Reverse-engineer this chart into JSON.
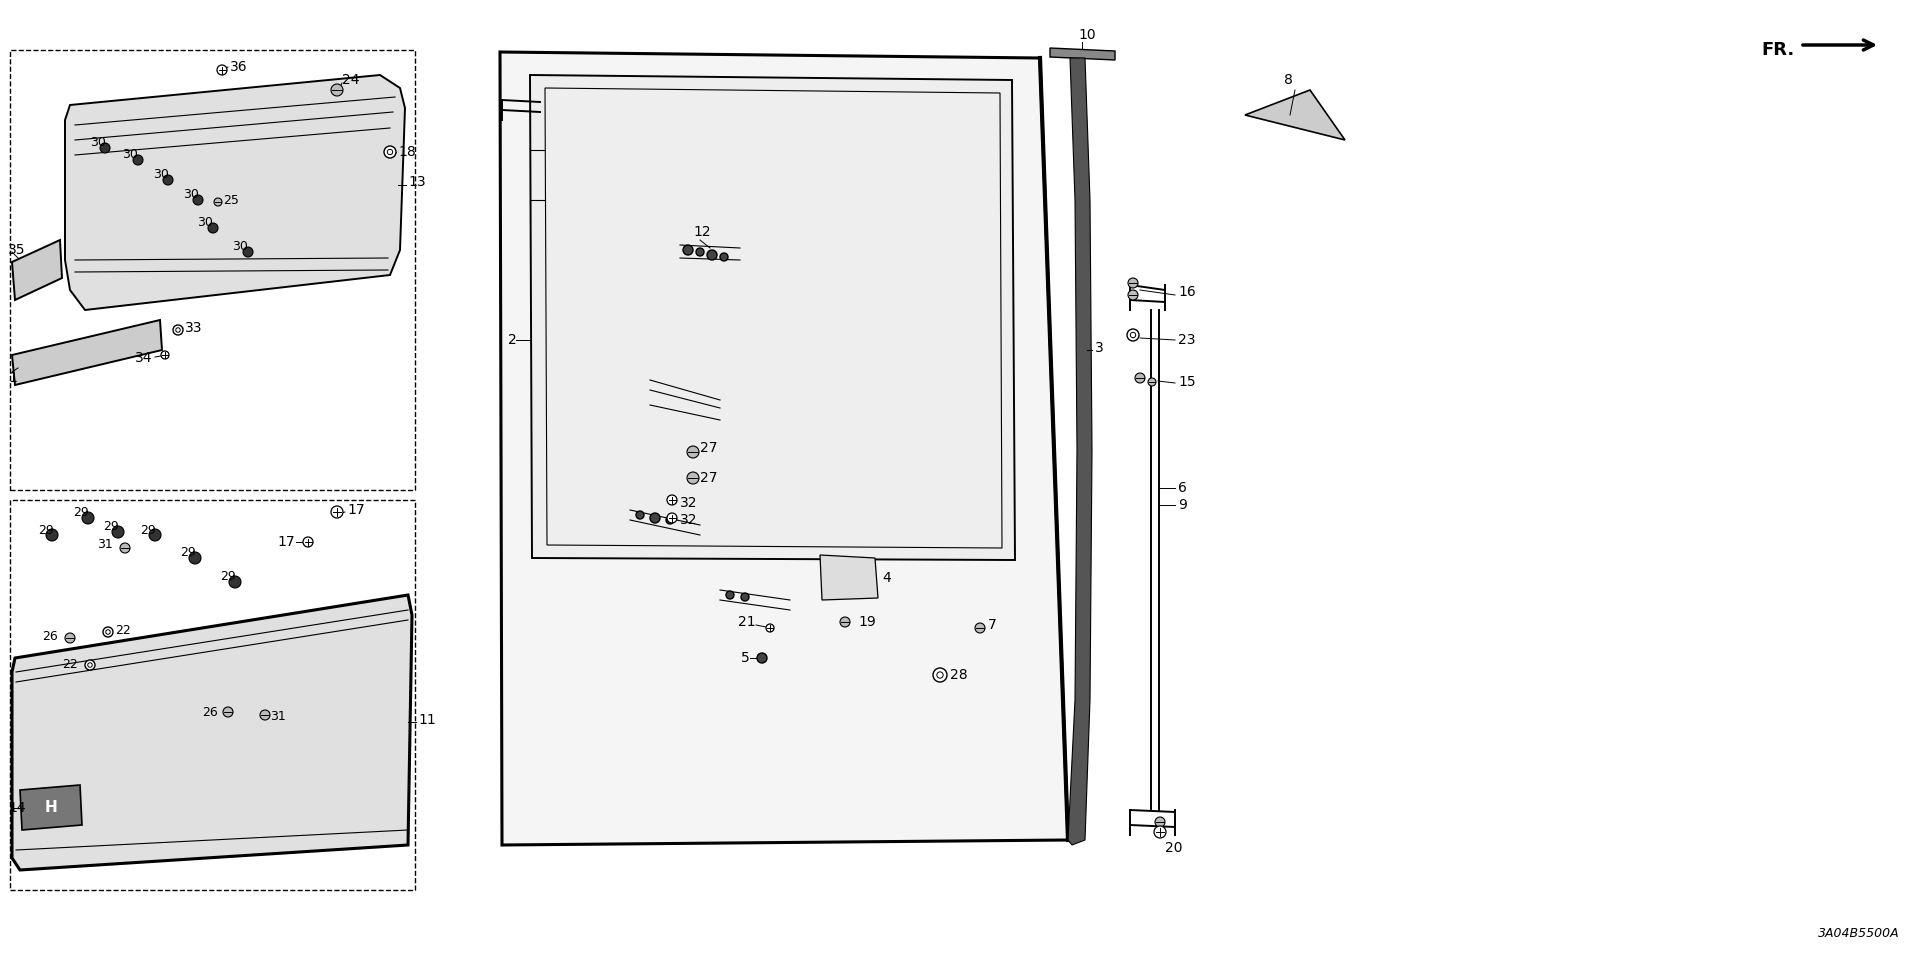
{
  "bg_color": "#ffffff",
  "line_color": "#000000",
  "diagram_code": "3A04B5500A"
}
